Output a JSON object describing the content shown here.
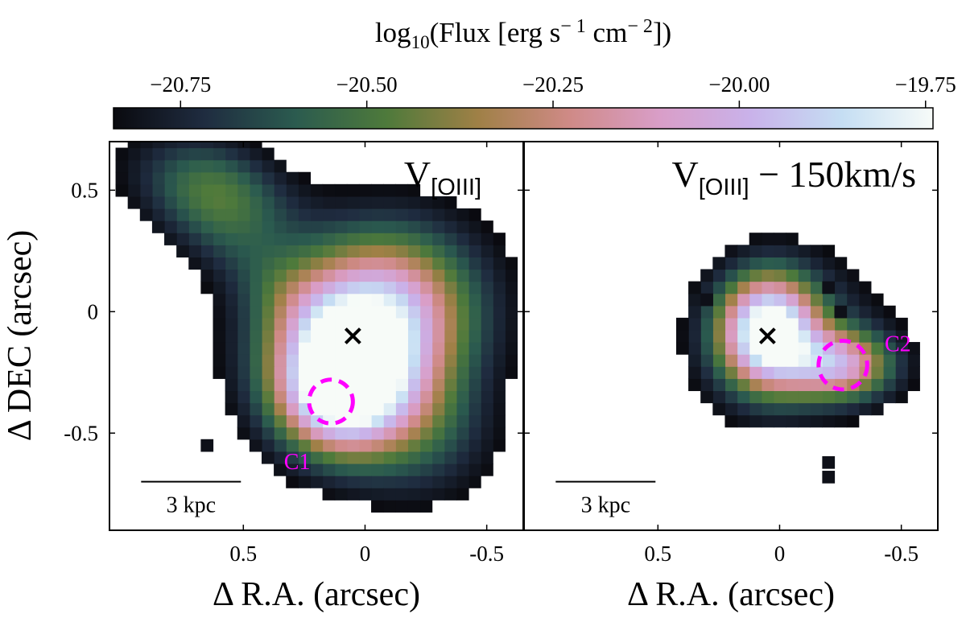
{
  "colorbar": {
    "label_main": "log",
    "label_sub": "10",
    "label_rest": "(Flux [erg s",
    "label_unit1_exp": "− 1",
    "label_mid": " cm",
    "label_unit2_exp": "− 2",
    "label_end": "])",
    "range": [
      -20.84,
      -19.74
    ],
    "ticks": [
      {
        "value": -20.75,
        "label": "−20.75"
      },
      {
        "value": -20.5,
        "label": "−20.50"
      },
      {
        "value": -20.25,
        "label": "−20.25"
      },
      {
        "value": -20.0,
        "label": "−20.00"
      },
      {
        "value": -19.75,
        "label": "−19.75"
      }
    ],
    "colormap": [
      "#0a0a0f",
      "#1f2c40",
      "#2b5b4f",
      "#4e7a3b",
      "#9f8046",
      "#cf8a86",
      "#d99ec8",
      "#c9b2ea",
      "#c5def3",
      "#f7fbf8"
    ]
  },
  "chart_data": [
    {
      "type": "heatmap",
      "panel": "left",
      "title_main": "V",
      "title_sub": "[OIII]",
      "title_rest": "",
      "xlabel": "Δ R.A. (arcsec)",
      "ylabel": "Δ DEC (arcsec)",
      "xlim": [
        1.05,
        -0.65
      ],
      "ylim": [
        -0.9,
        0.7
      ],
      "xticks": [
        {
          "value": 0.5,
          "label": "0.5"
        },
        {
          "value": 0,
          "label": "0"
        },
        {
          "value": -0.5,
          "label": "-0.5"
        }
      ],
      "yticks": [
        {
          "value": 0.5,
          "label": "0.5"
        },
        {
          "value": 0,
          "label": "0"
        },
        {
          "value": -0.5,
          "label": "-0.5"
        }
      ],
      "pixel_size": 0.05,
      "blobs": [
        {
          "x": -0.02,
          "y": -0.05,
          "sx": 0.28,
          "sy": 0.24,
          "angle": -25,
          "peak": 0.95
        },
        {
          "x": 0.12,
          "y": -0.33,
          "sx": 0.17,
          "sy": 0.17,
          "angle": 0,
          "peak": 0.75
        },
        {
          "x": 0.42,
          "y": 0.15,
          "sx": 0.45,
          "sy": 0.12,
          "angle": 38,
          "peak": 0.12
        },
        {
          "x": 0.6,
          "y": 0.5,
          "sx": 0.22,
          "sy": 0.14,
          "angle": 25,
          "peak": 0.33
        },
        {
          "x": -0.15,
          "y": -0.45,
          "sx": 0.24,
          "sy": 0.2,
          "angle": 30,
          "peak": 0.28
        }
      ],
      "threshold": 0.07,
      "extra_pixels": [
        [
          0.65,
          -0.55
        ]
      ],
      "nucleus": {
        "x": 0.05,
        "y": -0.1
      },
      "clump": {
        "name": "C1",
        "x": 0.14,
        "y": -0.37,
        "radius": 0.09
      },
      "scalebar": {
        "label": "3 kpc",
        "x0": 0.92,
        "x1": 0.51,
        "y": -0.7
      }
    },
    {
      "type": "heatmap",
      "panel": "right",
      "title_main": "V",
      "title_sub": "[OIII]",
      "title_rest": " − 150km/s",
      "xlabel": "Δ R.A. (arcsec)",
      "ylabel": "",
      "xlim": [
        1.05,
        -0.65
      ],
      "ylim": [
        -0.9,
        0.7
      ],
      "xticks": [
        {
          "value": 0.5,
          "label": "0.5"
        },
        {
          "value": 0,
          "label": "0"
        },
        {
          "value": -0.5,
          "label": "-0.5"
        }
      ],
      "yticks": [],
      "pixel_size": 0.05,
      "blobs": [
        {
          "x": 0.05,
          "y": -0.08,
          "sx": 0.14,
          "sy": 0.16,
          "angle": 0,
          "peak": 0.95
        },
        {
          "x": -0.25,
          "y": -0.22,
          "sx": 0.15,
          "sy": 0.1,
          "angle": 0,
          "peak": 0.6
        },
        {
          "x": -0.05,
          "y": -0.1,
          "sx": 0.26,
          "sy": 0.22,
          "angle": -20,
          "peak": 0.18
        }
      ],
      "threshold": 0.07,
      "extra_pixels": [
        [
          0.3,
          0.05
        ],
        [
          -0.2,
          0.1
        ],
        [
          -0.25,
          0.0
        ],
        [
          -0.2,
          -0.62
        ],
        [
          -0.2,
          -0.68
        ]
      ],
      "nucleus": {
        "x": 0.05,
        "y": -0.1
      },
      "clump": {
        "name": "C2",
        "x": -0.26,
        "y": -0.22,
        "radius": 0.1
      },
      "scalebar": {
        "label": "3 kpc",
        "x0": 0.92,
        "x1": 0.51,
        "y": -0.7
      }
    }
  ]
}
